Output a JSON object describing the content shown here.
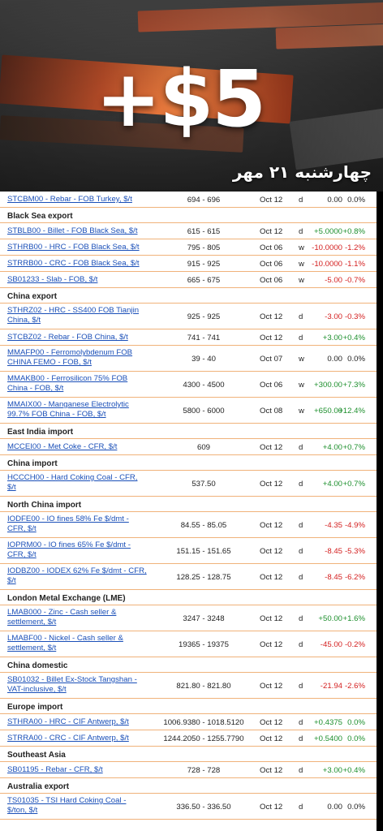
{
  "hero": {
    "headline": "+$5",
    "date": "چهارشنبه ۲۱ مهر"
  },
  "rows": [
    {
      "type": "row",
      "name": [
        "STCBM00 - Rebar - FOB Turkey, $/t"
      ],
      "price": "694 - 696",
      "date": "Oct 12",
      "flag": "d",
      "change": "0.00",
      "pct": "0.0%",
      "dir": "zero"
    },
    {
      "type": "section",
      "label": "Black Sea export"
    },
    {
      "type": "row",
      "name": [
        "STBLB00 - Billet - FOB Black Sea, $/t"
      ],
      "price": "615 - 615",
      "date": "Oct 12",
      "flag": "d",
      "change": "+5.0000",
      "pct": "+0.8%",
      "dir": "pos"
    },
    {
      "type": "row",
      "name": [
        "STHRB00 - HRC - FOB Black Sea, $/t"
      ],
      "price": "795 - 805",
      "date": "Oct 06",
      "flag": "w",
      "change": "-10.0000",
      "pct": "-1.2%",
      "dir": "neg"
    },
    {
      "type": "row",
      "name": [
        "STRRB00 - CRC - FOB Black Sea, $/t"
      ],
      "price": "915 - 925",
      "date": "Oct 06",
      "flag": "w",
      "change": "-10.0000",
      "pct": "-1.1%",
      "dir": "neg"
    },
    {
      "type": "row",
      "name": [
        "SB01233 - Slab - FOB, $/t"
      ],
      "price": "665 - 675",
      "date": "Oct 06",
      "flag": "w",
      "change": "-5.00",
      "pct": "-0.7%",
      "dir": "neg"
    },
    {
      "type": "section",
      "label": "China export"
    },
    {
      "type": "row",
      "name": [
        "STHRZ02 - HRC - SS400 FOB Tianjin",
        "China, $/t"
      ],
      "price": "925 - 925",
      "date": "Oct 12",
      "flag": "d",
      "change": "-3.00",
      "pct": "-0.3%",
      "dir": "neg"
    },
    {
      "type": "row",
      "name": [
        "STCBZ02 - Rebar - FOB China, $/t"
      ],
      "price": "741 - 741",
      "date": "Oct 12",
      "flag": "d",
      "change": "+3.00",
      "pct": "+0.4%",
      "dir": "pos"
    },
    {
      "type": "row",
      "name": [
        "MMAFP00 - Ferromolybdenum FOB",
        "CHINA FEMO - FOB, $/t"
      ],
      "price": "39 - 40",
      "date": "Oct 07",
      "flag": "w",
      "change": "0.00",
      "pct": "0.0%",
      "dir": "zero"
    },
    {
      "type": "row",
      "name": [
        "MMAKB00 - Ferrosilicon 75% FOB",
        "China - FOB, $/t"
      ],
      "price": "4300 - 4500",
      "date": "Oct 06",
      "flag": "w",
      "change": "+300.00",
      "pct": "+7.3%",
      "dir": "pos"
    },
    {
      "type": "row",
      "name": [
        "MMAIX00 - Manganese Electrolytic",
        "99.7% FOB China - FOB, $/t"
      ],
      "price": "5800 - 6000",
      "date": "Oct 08",
      "flag": "w",
      "change": "+650.00",
      "pct": "+12.4%",
      "dir": "pos"
    },
    {
      "type": "section",
      "label": "East India import"
    },
    {
      "type": "row",
      "name": [
        "MCCEI00 - Met Coke - CFR, $/t"
      ],
      "price": "609",
      "date": "Oct 12",
      "flag": "d",
      "change": "+4.00",
      "pct": "+0.7%",
      "dir": "pos"
    },
    {
      "type": "section",
      "label": "China import"
    },
    {
      "type": "row",
      "name": [
        "HCCCH00 - Hard Coking Coal - CFR,",
        "$/t"
      ],
      "price": "537.50",
      "date": "Oct 12",
      "flag": "d",
      "change": "+4.00",
      "pct": "+0.7%",
      "dir": "pos"
    },
    {
      "type": "section",
      "label": "North China import"
    },
    {
      "type": "row",
      "name": [
        "IODFE00 - IO fines 58% Fe $/dmt -",
        "CFR, $/t"
      ],
      "price": "84.55 - 85.05",
      "date": "Oct 12",
      "flag": "d",
      "change": "-4.35",
      "pct": "-4.9%",
      "dir": "neg"
    },
    {
      "type": "row",
      "name": [
        "IOPRM00 - IO fines 65% Fe $/dmt -",
        "CFR, $/t"
      ],
      "price": "151.15 - 151.65",
      "date": "Oct 12",
      "flag": "d",
      "change": "-8.45",
      "pct": "-5.3%",
      "dir": "neg"
    },
    {
      "type": "row",
      "name": [
        "IODBZ00 - IODEX 62% Fe $/dmt - CFR,",
        "$/t"
      ],
      "price": "128.25 - 128.75",
      "date": "Oct 12",
      "flag": "d",
      "change": "-8.45",
      "pct": "-6.2%",
      "dir": "neg"
    },
    {
      "type": "section",
      "label": "London Metal Exchange (LME)"
    },
    {
      "type": "row",
      "name": [
        "LMAB000 - Zinc - Cash seller &",
        "settlement, $/t"
      ],
      "price": "3247 - 3248",
      "date": "Oct 12",
      "flag": "d",
      "change": "+50.00",
      "pct": "+1.6%",
      "dir": "pos"
    },
    {
      "type": "row",
      "name": [
        "LMABF00 - Nickel - Cash seller &",
        "settlement, $/t"
      ],
      "price": "19365 - 19375",
      "date": "Oct 12",
      "flag": "d",
      "change": "-45.00",
      "pct": "-0.2%",
      "dir": "neg"
    },
    {
      "type": "section",
      "label": "China domestic"
    },
    {
      "type": "row",
      "name": [
        "SB01032 - Billet Ex-Stock Tangshan -",
        "VAT-inclusive, $/t"
      ],
      "price": "821.80 - 821.80",
      "date": "Oct 12",
      "flag": "d",
      "change": "-21.94",
      "pct": "-2.6%",
      "dir": "neg"
    },
    {
      "type": "section",
      "label": "Europe import"
    },
    {
      "type": "row",
      "name": [
        "STHRA00 - HRC - CIF Antwerp, $/t"
      ],
      "price": "1006.9380 - 1018.5120",
      "date": "Oct 12",
      "flag": "d",
      "change": "+0.4375",
      "pct": "0.0%",
      "dir": "pos"
    },
    {
      "type": "row",
      "name": [
        "STRRA00 - CRC - CIF Antwerp, $/t"
      ],
      "price": "1244.2050 - 1255.7790",
      "date": "Oct 12",
      "flag": "d",
      "change": "+0.5400",
      "pct": "0.0%",
      "dir": "pos"
    },
    {
      "type": "section",
      "label": "Southeast Asia"
    },
    {
      "type": "row",
      "name": [
        "SB01195 - Rebar - CFR, $/t"
      ],
      "price": "728 - 728",
      "date": "Oct 12",
      "flag": "d",
      "change": "+3.00",
      "pct": "+0.4%",
      "dir": "pos"
    },
    {
      "type": "section",
      "label": "Australia export"
    },
    {
      "type": "row",
      "name": [
        "TS01035 - TSI Hard Coking Coal -",
        "$/ton, $/t"
      ],
      "price": "336.50 - 336.50",
      "date": "Oct 12",
      "flag": "d",
      "change": "0.00",
      "pct": "0.0%",
      "dir": "zero"
    }
  ]
}
